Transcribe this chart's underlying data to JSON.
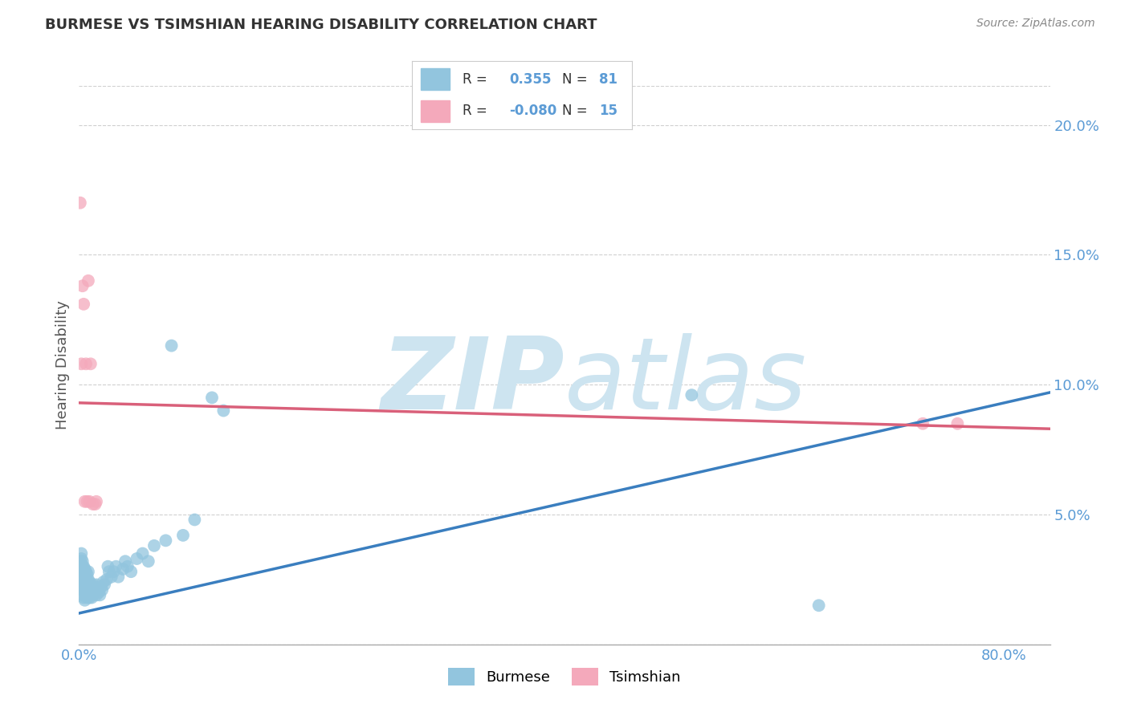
{
  "title": "BURMESE VS TSIMSHIAN HEARING DISABILITY CORRELATION CHART",
  "source": "Source: ZipAtlas.com",
  "ylabel": "Hearing Disability",
  "xlim": [
    0.0,
    0.84
  ],
  "ylim": [
    0.0,
    0.215
  ],
  "xlabel_vals": [
    0.0,
    0.8
  ],
  "xlabel_labels": [
    "0.0%",
    "80.0%"
  ],
  "ylabel_vals": [
    0.05,
    0.1,
    0.15,
    0.2
  ],
  "ylabel_labels": [
    "5.0%",
    "10.0%",
    "15.0%",
    "20.0%"
  ],
  "burmese_R": "0.355",
  "burmese_N": "81",
  "tsimshian_R": "-0.080",
  "tsimshian_N": "15",
  "burmese_color": "#92c5de",
  "burmese_line_color": "#3a7ebf",
  "tsimshian_color": "#f4a9bb",
  "tsimshian_line_color": "#d9607a",
  "tick_label_color": "#5b9bd5",
  "background_color": "#ffffff",
  "watermark_color": "#cde4f0",
  "grid_color": "#d0d0d0",
  "burmese_x": [
    0.001,
    0.001,
    0.001,
    0.002,
    0.002,
    0.002,
    0.002,
    0.002,
    0.002,
    0.003,
    0.003,
    0.003,
    0.003,
    0.003,
    0.003,
    0.003,
    0.004,
    0.004,
    0.004,
    0.004,
    0.004,
    0.005,
    0.005,
    0.005,
    0.005,
    0.005,
    0.006,
    0.006,
    0.006,
    0.006,
    0.007,
    0.007,
    0.007,
    0.007,
    0.008,
    0.008,
    0.008,
    0.008,
    0.009,
    0.009,
    0.009,
    0.01,
    0.01,
    0.011,
    0.011,
    0.012,
    0.012,
    0.013,
    0.014,
    0.015,
    0.015,
    0.016,
    0.017,
    0.018,
    0.019,
    0.02,
    0.021,
    0.022,
    0.024,
    0.025,
    0.026,
    0.028,
    0.03,
    0.032,
    0.034,
    0.038,
    0.04,
    0.042,
    0.045,
    0.05,
    0.055,
    0.06,
    0.065,
    0.075,
    0.08,
    0.09,
    0.1,
    0.115,
    0.125,
    0.53,
    0.64
  ],
  "burmese_y": [
    0.028,
    0.03,
    0.032,
    0.021,
    0.025,
    0.028,
    0.03,
    0.033,
    0.035,
    0.019,
    0.022,
    0.024,
    0.026,
    0.028,
    0.03,
    0.032,
    0.018,
    0.021,
    0.024,
    0.027,
    0.03,
    0.017,
    0.02,
    0.023,
    0.026,
    0.029,
    0.019,
    0.022,
    0.025,
    0.028,
    0.018,
    0.021,
    0.024,
    0.027,
    0.019,
    0.022,
    0.025,
    0.028,
    0.018,
    0.021,
    0.024,
    0.019,
    0.022,
    0.018,
    0.022,
    0.019,
    0.023,
    0.02,
    0.022,
    0.019,
    0.023,
    0.021,
    0.02,
    0.019,
    0.022,
    0.021,
    0.024,
    0.023,
    0.025,
    0.03,
    0.028,
    0.026,
    0.028,
    0.03,
    0.026,
    0.029,
    0.032,
    0.03,
    0.028,
    0.033,
    0.035,
    0.032,
    0.038,
    0.04,
    0.115,
    0.042,
    0.048,
    0.095,
    0.09,
    0.096,
    0.015
  ],
  "tsimshian_x": [
    0.001,
    0.002,
    0.003,
    0.004,
    0.005,
    0.006,
    0.007,
    0.008,
    0.009,
    0.01,
    0.012,
    0.014,
    0.015,
    0.73,
    0.76
  ],
  "tsimshian_y": [
    0.17,
    0.108,
    0.138,
    0.131,
    0.055,
    0.108,
    0.055,
    0.14,
    0.055,
    0.108,
    0.054,
    0.054,
    0.055,
    0.085,
    0.085
  ],
  "burmese_line_x0": 0.0,
  "burmese_line_x1": 0.84,
  "burmese_line_y0": 0.012,
  "burmese_line_y1": 0.097,
  "tsimshian_line_x0": 0.0,
  "tsimshian_line_x1": 0.84,
  "tsimshian_line_y0": 0.093,
  "tsimshian_line_y1": 0.083
}
